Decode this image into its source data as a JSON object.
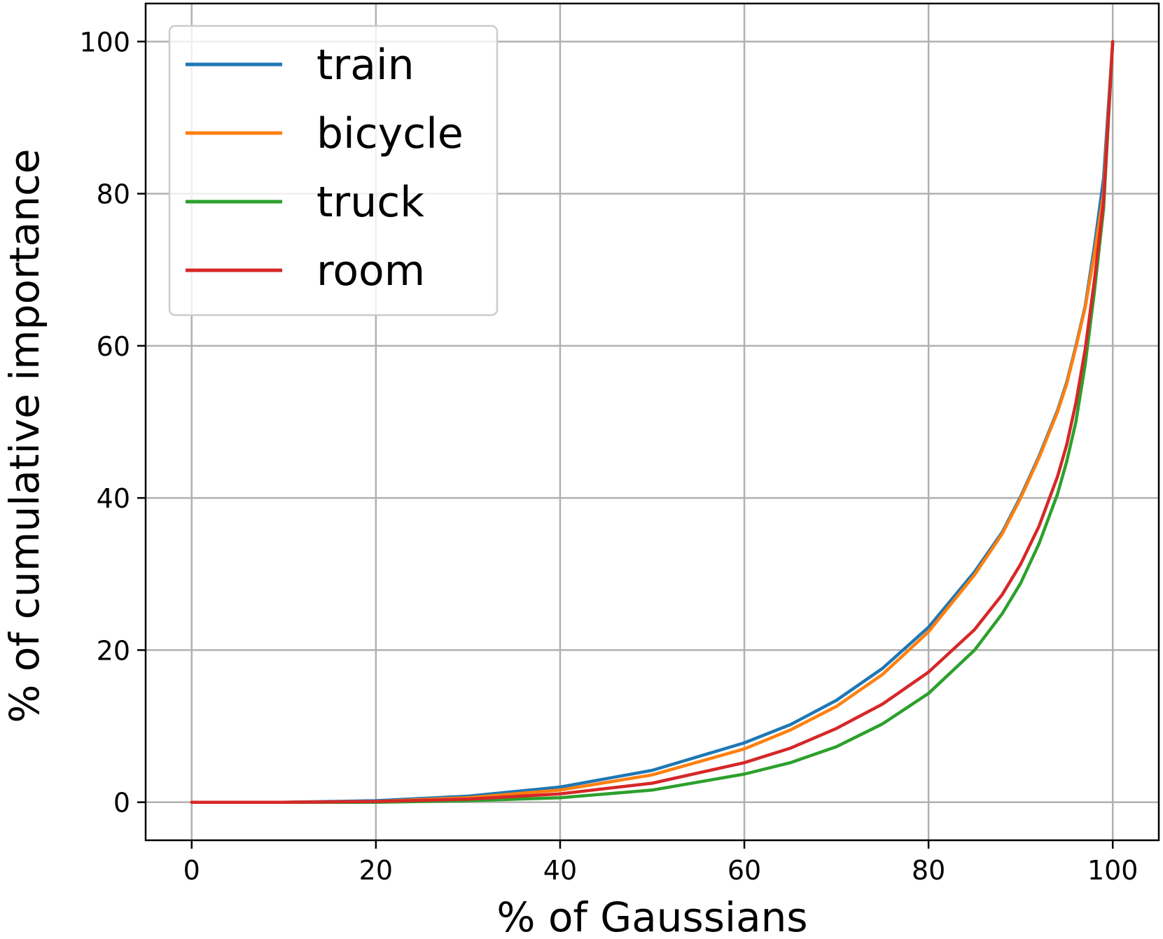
{
  "chart_data": {
    "type": "line",
    "xlabel": "% of Gaussians",
    "ylabel": "% of cumulative importance",
    "xlim": [
      -5,
      105
    ],
    "ylim": [
      -5,
      105
    ],
    "xticks": [
      0,
      20,
      40,
      60,
      80,
      100
    ],
    "yticks": [
      0,
      20,
      40,
      60,
      80,
      100
    ],
    "grid": true,
    "legend_position": "top-left",
    "series": [
      {
        "name": "train",
        "color": "#1f77b4",
        "x": [
          0,
          10,
          20,
          30,
          40,
          50,
          60,
          65,
          70,
          75,
          80,
          85,
          88,
          90,
          92,
          94,
          95,
          96,
          97,
          98,
          99,
          100
        ],
        "y": [
          0,
          0,
          0.2,
          0.8,
          2.0,
          4.2,
          7.8,
          10.2,
          13.4,
          17.6,
          23.0,
          30.3,
          35.5,
          40.2,
          45.5,
          51.5,
          55.2,
          60.0,
          65.2,
          73.0,
          82.0,
          100
        ]
      },
      {
        "name": "bicycle",
        "color": "#ff7f0e",
        "x": [
          0,
          10,
          20,
          30,
          40,
          50,
          60,
          65,
          70,
          75,
          80,
          85,
          88,
          90,
          92,
          94,
          95,
          96,
          97,
          98,
          99,
          100
        ],
        "y": [
          0,
          0,
          0.1,
          0.6,
          1.6,
          3.6,
          7.0,
          9.5,
          12.6,
          16.8,
          22.4,
          29.9,
          35.3,
          40.0,
          45.3,
          51.3,
          55.0,
          59.8,
          65.0,
          72.0,
          80.0,
          100
        ]
      },
      {
        "name": "truck",
        "color": "#2ca02c",
        "x": [
          0,
          10,
          20,
          30,
          40,
          50,
          60,
          65,
          70,
          75,
          80,
          85,
          88,
          90,
          92,
          94,
          95,
          96,
          97,
          98,
          99,
          100
        ],
        "y": [
          0,
          0,
          0,
          0.2,
          0.6,
          1.6,
          3.7,
          5.2,
          7.3,
          10.3,
          14.3,
          20.0,
          24.8,
          28.8,
          34.0,
          40.5,
          44.8,
          50.0,
          57.5,
          67.0,
          78.0,
          100
        ]
      },
      {
        "name": "room",
        "color": "#d62728",
        "x": [
          0,
          10,
          20,
          30,
          40,
          50,
          60,
          65,
          70,
          75,
          80,
          85,
          88,
          90,
          92,
          94,
          95,
          96,
          97,
          98,
          99,
          100
        ],
        "y": [
          0,
          0,
          0.1,
          0.4,
          1.1,
          2.5,
          5.2,
          7.1,
          9.7,
          12.9,
          17.1,
          22.7,
          27.3,
          31.3,
          36.3,
          42.8,
          47.0,
          52.5,
          59.5,
          68.5,
          79.0,
          100
        ]
      }
    ]
  }
}
